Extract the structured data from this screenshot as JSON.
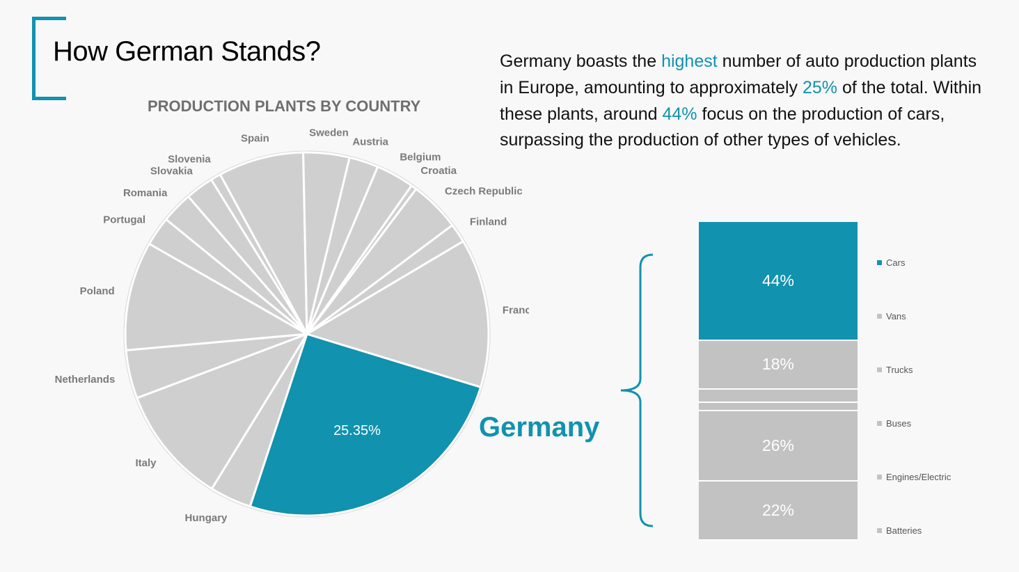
{
  "title": "How German Stands?",
  "description": {
    "p1": "Germany boasts the ",
    "h1": "highest",
    "p2": " number of auto production plants in Europe, amounting to approximately ",
    "h2": "25%",
    "p3": " of the total. Within these plants, around ",
    "h3": "44%",
    "p4": " focus on the production of cars, surpassing the production of other types of vehicles."
  },
  "colors": {
    "accent": "#1192ae",
    "slice": "#cfcfcf",
    "bar": "#c2c2c2",
    "border": "#ffffff"
  },
  "germany_label": "Germany",
  "chart_data": [
    {
      "type": "pie",
      "title": "PRODUCTION PLANTS BY COUNTRY",
      "highlight": "Germany",
      "highlight_label": "25.35%",
      "slices": [
        {
          "name": "Germany",
          "value": 25.35
        },
        {
          "name": "Hungary",
          "value": 3.7
        },
        {
          "name": "Italy",
          "value": 10.5
        },
        {
          "name": "Netherlands",
          "value": 4.3
        },
        {
          "name": "Poland",
          "value": 9.7
        },
        {
          "name": "Portugal",
          "value": 2.6
        },
        {
          "name": "Romania",
          "value": 2.8
        },
        {
          "name": "Slovakia",
          "value": 2.5
        },
        {
          "name": "Slovenia",
          "value": 0.9
        },
        {
          "name": "Spain",
          "value": 7.6
        },
        {
          "name": "Sweden",
          "value": 4.1
        },
        {
          "name": "Austria",
          "value": 2.6
        },
        {
          "name": "Belgium",
          "value": 3.4
        },
        {
          "name": "Croatia",
          "value": 0.5
        },
        {
          "name": "Czech Republic",
          "value": 4.5
        },
        {
          "name": "Finland",
          "value": 1.7
        },
        {
          "name": "France",
          "value": 13.25
        }
      ]
    },
    {
      "type": "bar",
      "stacked": true,
      "categories": [
        "Germany"
      ],
      "series": [
        {
          "name": "Cars",
          "value": 44,
          "label": "44%"
        },
        {
          "name": "Vans",
          "value": 18,
          "label": "18%"
        },
        {
          "name": "Trucks",
          "value": 5,
          "label": ""
        },
        {
          "name": "Buses",
          "value": 3,
          "label": ""
        },
        {
          "name": "Engines/Electric",
          "value": 26,
          "label": "26%"
        },
        {
          "name": "Batteries",
          "value": 22,
          "label": "22%"
        }
      ],
      "legend": [
        "Cars",
        "Vans",
        "Trucks",
        "Buses",
        "Engines/Electric",
        "Batteries"
      ]
    }
  ]
}
